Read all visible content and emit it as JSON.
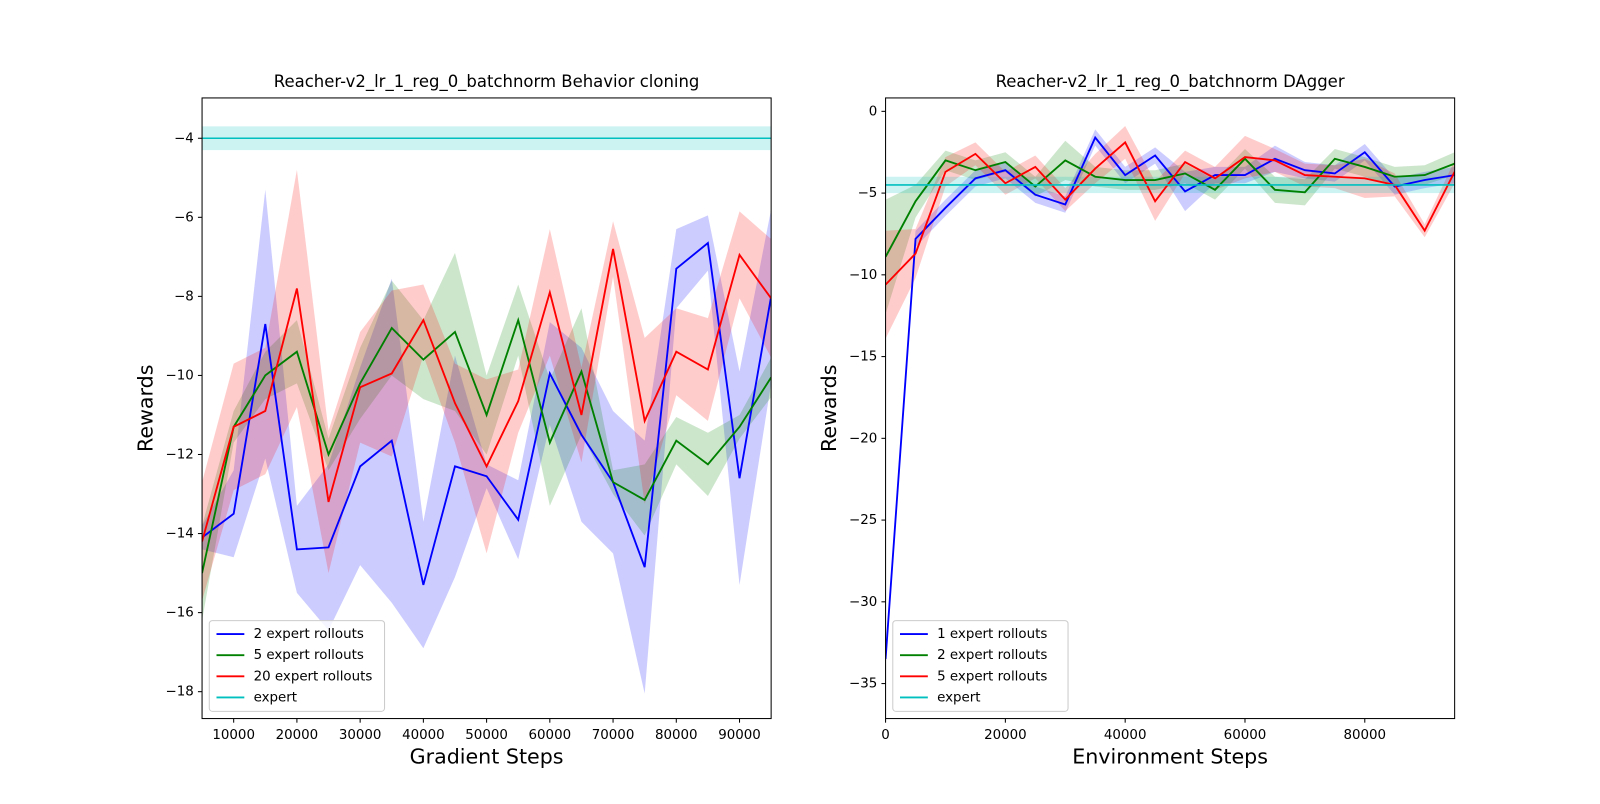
{
  "chart_data": [
    {
      "type": "line",
      "title": "Reacher-v2_lr_1_reg_0_batchnorm Behavior cloning",
      "x_label": "Gradient Steps",
      "y_label": "Rewards",
      "x": [
        5000,
        10000,
        15000,
        20000,
        25000,
        30000,
        35000,
        40000,
        45000,
        50000,
        55000,
        60000,
        65000,
        70000,
        75000,
        80000,
        85000,
        90000,
        95000
      ],
      "series": [
        {
          "name": "2 expert rollouts",
          "color": "#0000ff",
          "values": [
            -14.1,
            -13.5,
            -8.7,
            -14.4,
            -14.35,
            -12.3,
            -11.65,
            -15.3,
            -12.3,
            -12.55,
            -13.65,
            -9.95,
            -11.5,
            -12.7,
            -14.85,
            -7.3,
            -6.65,
            -12.6,
            -8.0
          ],
          "errors": [
            0.3,
            1.1,
            3.4,
            1.1,
            2.1,
            2.5,
            4.1,
            1.6,
            2.8,
            0.3,
            1.0,
            1.3,
            2.2,
            1.8,
            3.2,
            1.0,
            0.7,
            2.7,
            2.2
          ]
        },
        {
          "name": "5 expert rollouts",
          "color": "#008000",
          "values": [
            -15.0,
            -11.3,
            -10.0,
            -9.4,
            -12.0,
            -10.2,
            -8.8,
            -9.6,
            -8.9,
            -11.0,
            -8.6,
            -11.7,
            -9.9,
            -12.7,
            -13.15,
            -11.65,
            -12.25,
            -11.3,
            -10.05
          ],
          "errors": [
            1.2,
            0.4,
            0.6,
            0.8,
            0.4,
            0.9,
            1.2,
            1.0,
            2.0,
            1.0,
            0.9,
            1.6,
            1.6,
            0.3,
            0.9,
            0.6,
            0.8,
            0.3,
            0.5
          ]
        },
        {
          "name": "20 expert rollouts",
          "color": "#ff0000",
          "values": [
            -14.2,
            -11.3,
            -10.9,
            -7.8,
            -13.2,
            -10.3,
            -9.95,
            -8.6,
            -10.7,
            -12.3,
            -10.65,
            -7.9,
            -11.0,
            -6.8,
            -11.15,
            -9.4,
            -9.85,
            -6.95,
            -8.05
          ],
          "errors": [
            1.5,
            1.6,
            1.6,
            3.0,
            1.8,
            1.4,
            2.1,
            0.9,
            1.0,
            2.2,
            0.8,
            1.6,
            1.2,
            0.7,
            2.1,
            1.1,
            1.3,
            1.1,
            1.5
          ]
        },
        {
          "name": "expert",
          "color": "#00bfbf",
          "value": -4,
          "error": 0.3
        }
      ],
      "xlim": [
        5000,
        95000
      ],
      "xticks": [
        10000,
        20000,
        30000,
        40000,
        50000,
        60000,
        70000,
        80000,
        90000
      ],
      "ylim": [
        -18.68,
        -2.98
      ],
      "yticks": [
        {
          "value": -18,
          "label": "−18"
        },
        {
          "value": -16,
          "label": "−16"
        },
        {
          "value": -14,
          "label": "−14"
        },
        {
          "value": -12,
          "label": "−12"
        },
        {
          "value": -10,
          "label": "−10"
        },
        {
          "value": -8,
          "label": "−8"
        },
        {
          "value": -6,
          "label": "−6"
        },
        {
          "value": -4,
          "label": "−4"
        }
      ],
      "legend": "lower left"
    },
    {
      "type": "line",
      "title": "Reacher-v2_lr_1_reg_0_batchnorm DAgger",
      "x_label": "Environment Steps",
      "y_label": "Rewards",
      "x": [
        0,
        5000,
        10000,
        15000,
        20000,
        25000,
        30000,
        35000,
        40000,
        45000,
        50000,
        55000,
        60000,
        65000,
        70000,
        75000,
        80000,
        85000,
        90000,
        95000
      ],
      "series": [
        {
          "name": "1 expert rollouts",
          "color": "#0000ff",
          "values": [
            -33.5,
            -7.8,
            -5.9,
            -4.1,
            -3.6,
            -5.1,
            -5.7,
            -1.6,
            -3.9,
            -2.7,
            -4.9,
            -3.9,
            -3.9,
            -2.9,
            -3.6,
            -3.8,
            -2.5,
            -4.6,
            -4.2,
            -3.9
          ],
          "errors": [
            0.5,
            0.5,
            0.5,
            0.5,
            0.5,
            0.5,
            0.5,
            0.5,
            0.5,
            0.5,
            1.2,
            0.5,
            0.5,
            0.8,
            0.5,
            0.5,
            0.5,
            0.5,
            0.5,
            0.5
          ]
        },
        {
          "name": "2 expert rollouts",
          "color": "#008000",
          "values": [
            -8.9,
            -5.5,
            -3.0,
            -3.6,
            -3.1,
            -4.6,
            -3.0,
            -4.0,
            -4.2,
            -4.2,
            -3.8,
            -4.8,
            -2.9,
            -4.8,
            -4.95,
            -2.9,
            -3.4,
            -4.0,
            -3.9,
            -3.2
          ],
          "errors": [
            3.5,
            1.0,
            0.6,
            0.6,
            0.6,
            0.6,
            1.2,
            0.6,
            0.6,
            0.6,
            0.6,
            0.6,
            0.6,
            0.8,
            0.8,
            0.6,
            0.6,
            0.6,
            0.6,
            0.7
          ]
        },
        {
          "name": "5 expert rollouts",
          "color": "#ff0000",
          "values": [
            -10.6,
            -8.7,
            -3.7,
            -2.6,
            -4.4,
            -3.4,
            -5.4,
            -3.5,
            -1.9,
            -5.5,
            -3.1,
            -4.1,
            -2.8,
            -3.0,
            -3.9,
            -4.0,
            -4.1,
            -4.5,
            -7.3,
            -3.7
          ],
          "errors": [
            3.3,
            1.5,
            0.9,
            0.7,
            0.7,
            0.7,
            0.7,
            0.9,
            1.0,
            1.2,
            0.7,
            0.7,
            1.3,
            0.7,
            0.7,
            0.7,
            1.2,
            0.7,
            0.4,
            0.7
          ]
        },
        {
          "name": "expert",
          "color": "#00bfbf",
          "value": -4.5,
          "error": 0.5
        }
      ],
      "xlim": [
        0,
        95000
      ],
      "xticks": [
        0,
        20000,
        40000,
        60000,
        80000
      ],
      "ylim": [
        -37.14,
        0.82
      ],
      "yticks": [
        {
          "value": -35,
          "label": "−35"
        },
        {
          "value": -30,
          "label": "−30"
        },
        {
          "value": -25,
          "label": "−25"
        },
        {
          "value": -20,
          "label": "−20"
        },
        {
          "value": -15,
          "label": "−15"
        },
        {
          "value": -10,
          "label": "−10"
        },
        {
          "value": -5,
          "label": "−5"
        },
        0
      ],
      "legend": "lower left"
    }
  ]
}
